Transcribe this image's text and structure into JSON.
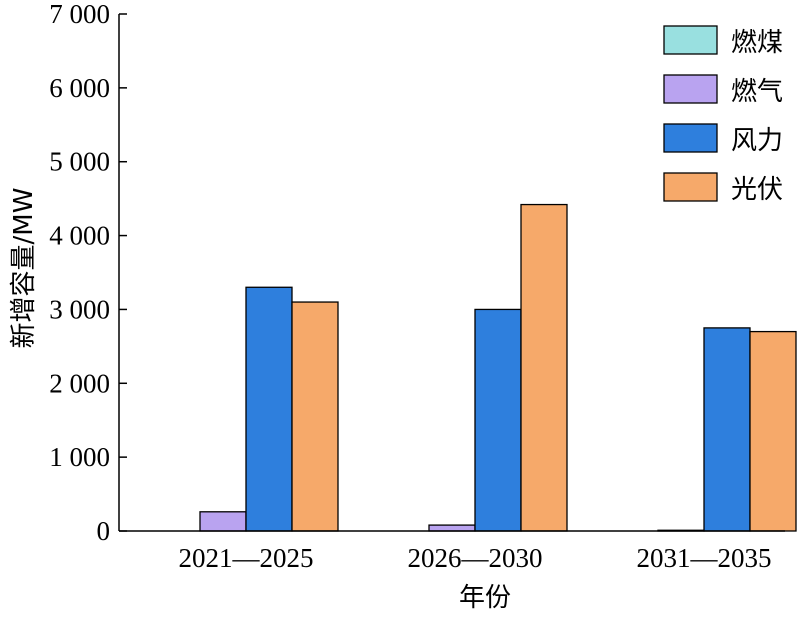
{
  "chart_data": {
    "type": "bar",
    "xlabel": "年份",
    "ylabel": "新增容量/MW",
    "categories": [
      "2021—2025",
      "2026—2030",
      "2031—2035"
    ],
    "ylim": [
      0,
      7000
    ],
    "yticks": [
      0,
      1000,
      2000,
      3000,
      4000,
      5000,
      6000,
      7000
    ],
    "ytick_labels": [
      "0",
      "1 000",
      "2 000",
      "3 000",
      "4 000",
      "5 000",
      "6 000",
      "7 000"
    ],
    "legend_position": "top-right",
    "grid": false,
    "series": [
      {
        "name": "燃煤",
        "color": "#99e0e0",
        "values": [
          0,
          0,
          0
        ]
      },
      {
        "name": "燃气",
        "color": "#b9a3f0",
        "values": [
          260,
          80,
          10
        ]
      },
      {
        "name": "风力",
        "color": "#2e7fdd",
        "values": [
          3300,
          3000,
          2750
        ]
      },
      {
        "name": "光伏",
        "color": "#f6a96a",
        "values": [
          3100,
          4420,
          2700
        ]
      }
    ]
  }
}
